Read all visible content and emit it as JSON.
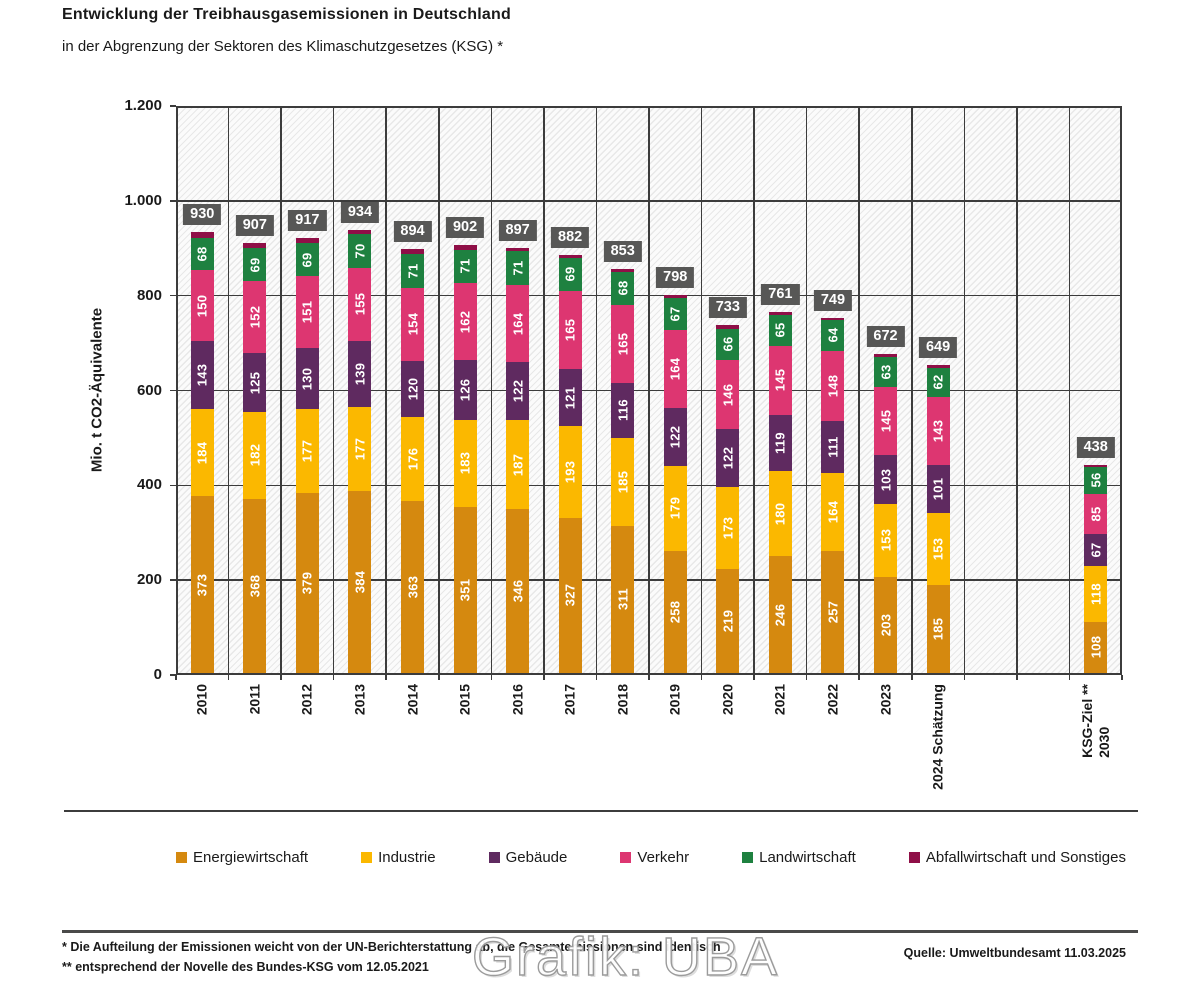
{
  "header": {
    "title": "Entwicklung der Treibhausgasemissionen  in Deutschland",
    "subtitle": "in der Abgrenzung der Sektoren des Klimaschutzgesetzes (KSG) *"
  },
  "chart_data": {
    "type": "bar",
    "stacked": true,
    "title": "Entwicklung der Treibhausgasemissionen in Deutschland",
    "subtitle": "in der Abgrenzung der Sektoren des Klimaschutzgesetzes (KSG) *",
    "ylabel": "Mio. t CO2-Äquivalente",
    "xlabel": "",
    "ylim": [
      0,
      1200
    ],
    "grid": true,
    "legend_position": "bottom",
    "ytick_values": [
      0,
      200,
      400,
      600,
      800,
      1000,
      1200
    ],
    "ytick_labels": [
      "0",
      "200",
      "400",
      "600",
      "800",
      "1.000",
      "1.200"
    ],
    "n_columns": 18,
    "categories": [
      "2010",
      "2011",
      "2012",
      "2013",
      "2014",
      "2015",
      "2016",
      "2017",
      "2018",
      "2019",
      "2020",
      "2021",
      "2022",
      "2023",
      "2024 Schätzung",
      "KSG-Ziel **\n2030"
    ],
    "category_columns": [
      0,
      1,
      2,
      3,
      4,
      5,
      6,
      7,
      8,
      9,
      10,
      11,
      12,
      13,
      14,
      17
    ],
    "totals": [
      930,
      907,
      917,
      934,
      894,
      902,
      897,
      882,
      853,
      798,
      733,
      761,
      749,
      672,
      649,
      438
    ],
    "series": [
      {
        "name": "Energiewirtschaft",
        "color": "#d5890f",
        "values": [
          373,
          368,
          379,
          384,
          363,
          351,
          346,
          327,
          311,
          258,
          219,
          246,
          257,
          203,
          185,
          108
        ]
      },
      {
        "name": "Industrie",
        "color": "#fbb800",
        "values": [
          184,
          182,
          177,
          177,
          176,
          183,
          187,
          193,
          185,
          179,
          173,
          180,
          164,
          153,
          153,
          118
        ]
      },
      {
        "name": "Gebäude",
        "color": "#5f2a60",
        "values": [
          143,
          125,
          130,
          139,
          120,
          126,
          122,
          121,
          116,
          122,
          122,
          119,
          111,
          103,
          101,
          67
        ]
      },
      {
        "name": "Verkehr",
        "color": "#dd3671",
        "values": [
          150,
          152,
          151,
          155,
          154,
          162,
          164,
          165,
          165,
          164,
          146,
          145,
          148,
          145,
          143,
          85
        ]
      },
      {
        "name": "Landwirtschaft",
        "color": "#1e8140",
        "values": [
          68,
          69,
          69,
          70,
          71,
          71,
          71,
          69,
          68,
          67,
          66,
          65,
          64,
          63,
          62,
          56
        ]
      },
      {
        "name": "Abfallwirtschaft und Sonstiges",
        "color": "#8f0f47",
        "unlabeled": true,
        "values": [
          12,
          11,
          11,
          9,
          10,
          9,
          7,
          7,
          8,
          8,
          7,
          6,
          5,
          5,
          5,
          4
        ]
      }
    ],
    "badge_color": "#575756"
  },
  "footer": {
    "footnote1": "* Die Aufteilung der Emissionen weicht von der UN-Berichterstattung ab, die Gesamtemissionen sind identisch",
    "footnote2": "** entsprechend der Novelle des Bundes-KSG vom 12.05.2021",
    "source": "Quelle: Umweltbundesamt  11.03.2025",
    "watermark": "Grafik: UBA"
  }
}
